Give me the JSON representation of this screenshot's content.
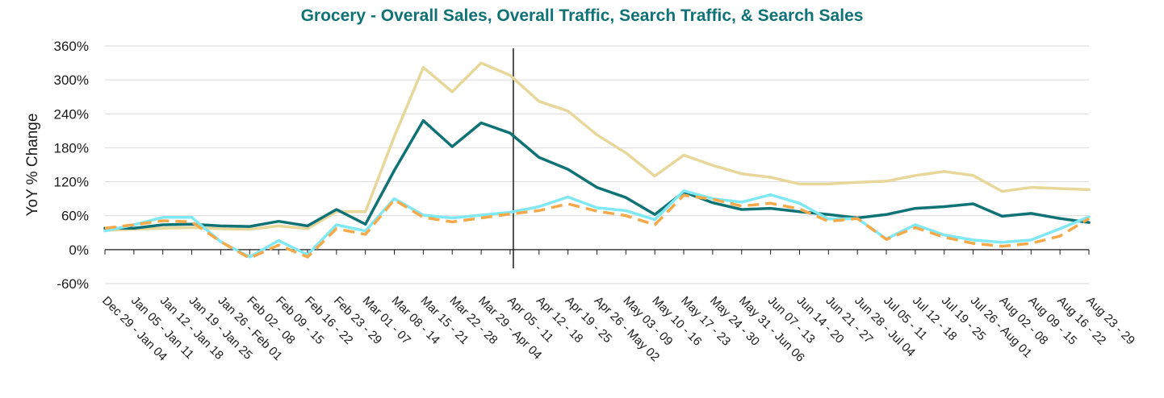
{
  "chart_data": {
    "type": "line",
    "title": "Grocery - Overall Sales, Overall Traffic, Search Traffic, & Search Sales",
    "ylabel": "YoY % Change",
    "xlabel": "",
    "ylim": [
      -60,
      360
    ],
    "yticks": [
      -60,
      0,
      60,
      120,
      180,
      240,
      300,
      360
    ],
    "ytick_labels": [
      "-60%",
      "0%",
      "60%",
      "120%",
      "180%",
      "240%",
      "300%",
      "360%"
    ],
    "grid": true,
    "legend": "none",
    "reference_line_at": "Apr 05 - 11",
    "categories": [
      "Dec 29 - Jan 04",
      "Jan 05 - Jan 11",
      "Jan 12 - Jan 18",
      "Jan 19 - Jan 25",
      "Jan 26 - Feb 01",
      "Feb 02 - 08",
      "Feb 09 - 15",
      "Feb 16 - 22",
      "Feb 23 - 29",
      "Mar 01 - 07",
      "Mar 08 - 14",
      "Mar 15 - 21",
      "Mar 22 - 28",
      "Mar 29 - Apr 04",
      "Apr 05 - 11",
      "Apr 12 - 18",
      "Apr 19 - 25",
      "Apr 26 - May 02",
      "May 03 - 09",
      "May 10 - 16",
      "May 17 - 23",
      "May 24 - 30",
      "May 31 - Jun 06",
      "Jun 07 - 13",
      "Jun 14 - 20",
      "Jun 21 - 27",
      "Jun 28 - Jul 04",
      "Jul 05 - 11",
      "Jul 12 - 18",
      "Jul 19 - 25",
      "Jul 26 - Aug 01",
      "Aug 02 - 08",
      "Aug 09 - 15",
      "Aug 16 - 22",
      "Aug 23 - 29"
    ],
    "series": [
      {
        "color": "#e8d79a",
        "dashed": false,
        "values": [
          34,
          36,
          38,
          39,
          37,
          36,
          42,
          37,
          67,
          67,
          200,
          322,
          279,
          330,
          308,
          262,
          245,
          203,
          171,
          130,
          167,
          149,
          134,
          128,
          116,
          116,
          119,
          121,
          131,
          138,
          131,
          103,
          110,
          108,
          106
        ]
      },
      {
        "color": "#0f7376",
        "dashed": false,
        "values": [
          38,
          38,
          44,
          45,
          42,
          41,
          50,
          42,
          71,
          45,
          140,
          228,
          182,
          224,
          206,
          163,
          142,
          110,
          92,
          62,
          102,
          83,
          71,
          73,
          67,
          62,
          56,
          62,
          73,
          76,
          81,
          59,
          64,
          55,
          48
        ]
      },
      {
        "color": "#80e8f2",
        "dashed": false,
        "values": [
          33,
          44,
          57,
          57,
          14,
          -13,
          16,
          -9,
          44,
          33,
          90,
          61,
          56,
          61,
          66,
          76,
          93,
          74,
          69,
          53,
          104,
          90,
          84,
          97,
          82,
          54,
          55,
          19,
          44,
          26,
          17,
          13,
          17,
          37,
          58
        ]
      },
      {
        "color": "#f5a94a",
        "dashed": true,
        "values": [
          38,
          44,
          51,
          49,
          14,
          -15,
          8,
          -13,
          37,
          27,
          88,
          57,
          49,
          56,
          63,
          69,
          81,
          68,
          60,
          44,
          96,
          89,
          77,
          82,
          72,
          50,
          55,
          18,
          39,
          22,
          11,
          6,
          11,
          24,
          55
        ]
      }
    ]
  }
}
